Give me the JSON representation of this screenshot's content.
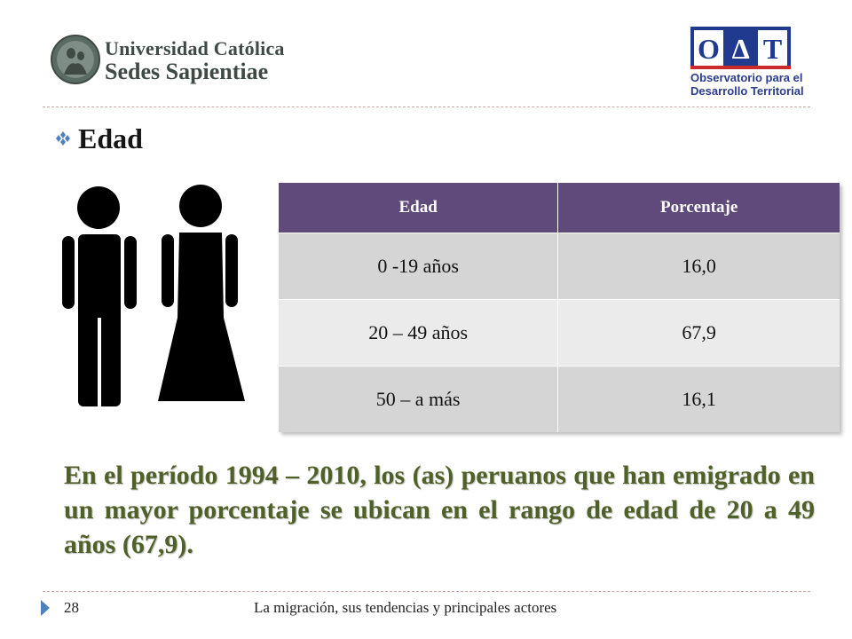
{
  "header": {
    "left_logo": {
      "line1": "Universidad Católica",
      "line2": "Sedes Sapientiae"
    },
    "right_logo": {
      "mark": "O∆T",
      "line1": "Observatorio para el",
      "line2": "Desarrollo Territorial"
    }
  },
  "slide": {
    "heading": "Edad",
    "table": {
      "headers": [
        "Edad",
        "Porcentaje"
      ],
      "rows": [
        [
          "0 -19 años",
          "16,0"
        ],
        [
          "20 – 49 años",
          "67,9"
        ],
        [
          "50 – a más",
          "16,1"
        ]
      ]
    },
    "paragraph": "En el período 1994 – 2010, los (as) peruanos que han emigrado en un mayor porcentaje se ubican en el rango de edad de 20 a 49 años (67,9)."
  },
  "footer": {
    "page_number": "28",
    "title": "La migración, sus tendencias y principales actores"
  },
  "colors": {
    "table_header": "#604a7b",
    "paragraph": "#4f6128",
    "accent": "#4f81bd"
  }
}
